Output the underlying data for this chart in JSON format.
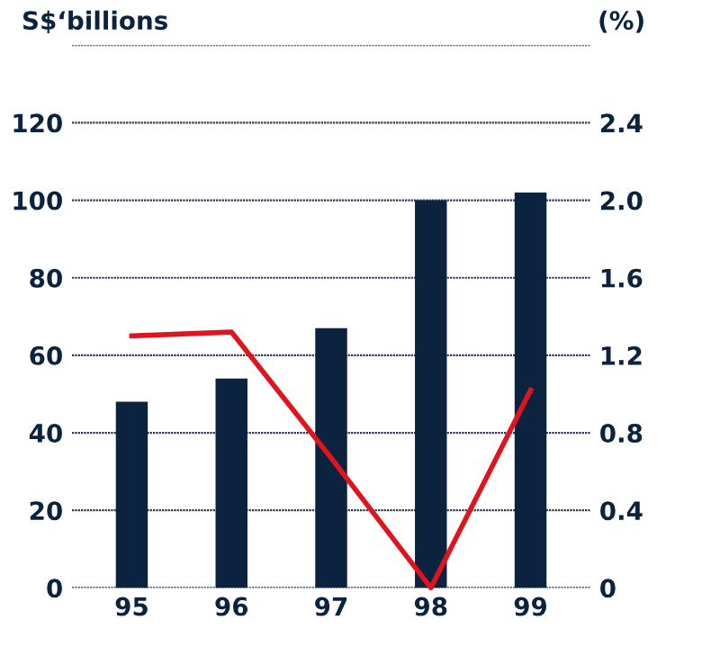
{
  "chart_data": {
    "type": "bar",
    "ylabel": "S$‘billions",
    "y2label": "(%)",
    "categories": [
      "95",
      "96",
      "97",
      "98",
      "99"
    ],
    "series": [
      {
        "color": "#0c2340",
        "values": [
          48,
          54,
          67,
          100,
          102
        ]
      },
      {
        "type": "line",
        "axis": "y2",
        "color": "#e0141e",
        "values": [
          1.3,
          1.32,
          0.67,
          0,
          1.02
        ]
      }
    ],
    "ylim": [
      0,
      140
    ],
    "yticks": [
      0,
      20,
      40,
      60,
      80,
      100,
      120
    ],
    "y2lim": [
      0,
      2.8
    ],
    "y2ticks": [
      0,
      0.4,
      0.8,
      1.2,
      1.6,
      {
        "value": 2.0,
        "label": "2.0"
      },
      2.4
    ],
    "grid": "y",
    "line_style": "solid",
    "marker": "none"
  }
}
